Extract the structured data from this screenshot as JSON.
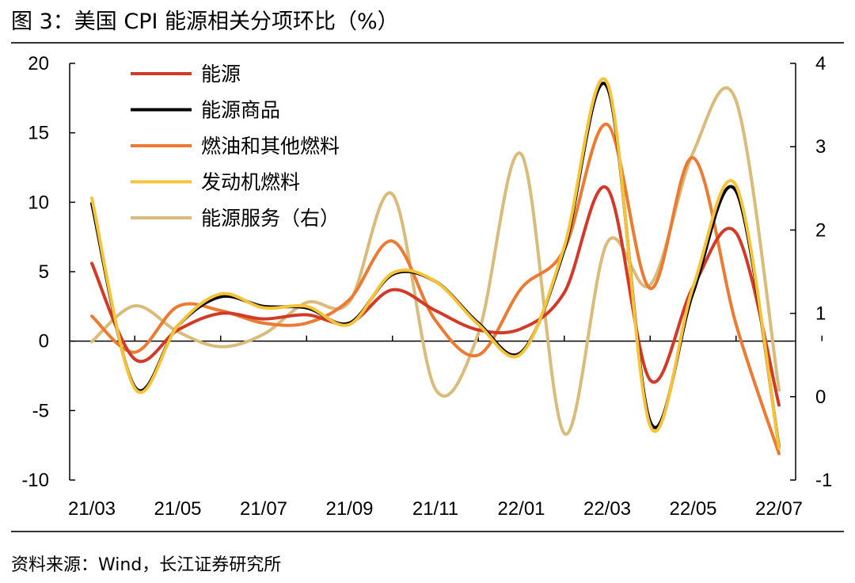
{
  "figure": {
    "title": "图 3：美国 CPI 能源相关分项环比（%）",
    "source": "资料来源：Wind，长江证券研究所"
  },
  "colors": {
    "能源": "#d13a27",
    "能源商品": "#000000",
    "燃油和其他燃料": "#eb7a32",
    "发动机燃料": "#f6c236",
    "能源服务": "#d9bb7a"
  },
  "chart_data": {
    "type": "line",
    "categories": [
      "21/03",
      "21/04",
      "21/05",
      "21/06",
      "21/07",
      "21/08",
      "21/09",
      "21/10",
      "21/11",
      "21/12",
      "22/01",
      "22/02",
      "22/03",
      "22/04",
      "22/05",
      "22/06",
      "22/07"
    ],
    "x_tick_labels": [
      "21/03",
      "21/05",
      "21/07",
      "21/09",
      "21/11",
      "22/01",
      "22/03",
      "22/05",
      "22/07"
    ],
    "y_left": {
      "ticks": [
        "20",
        "15",
        "10",
        "5",
        "0",
        "-5",
        "-10"
      ],
      "ylim": [
        -10,
        20
      ]
    },
    "y_right": {
      "ticks": [
        "4",
        "3",
        "2",
        "1",
        "0",
        "-1"
      ],
      "ylim": [
        -1,
        4
      ]
    },
    "legend_position": "top-left",
    "series": [
      {
        "name": "能源",
        "axis": "left",
        "values": [
          5.6,
          -1.3,
          0.8,
          2.0,
          1.6,
          1.9,
          1.3,
          3.7,
          2.2,
          0.8,
          0.9,
          3.5,
          11.0,
          -2.8,
          3.9,
          7.8,
          -4.6
        ]
      },
      {
        "name": "能源商品",
        "axis": "left",
        "values": [
          9.9,
          -3.3,
          1.1,
          3.2,
          2.5,
          2.4,
          1.3,
          4.8,
          4.3,
          1.3,
          -0.8,
          6.6,
          18.3,
          -5.8,
          3.5,
          10.8,
          -7.6
        ]
      },
      {
        "name": "燃油和其他燃料",
        "axis": "left",
        "values": [
          1.8,
          -0.8,
          2.5,
          2.2,
          1.3,
          1.3,
          3.0,
          7.2,
          1.5,
          -1.0,
          3.8,
          6.6,
          15.6,
          3.8,
          13.2,
          1.2,
          -8.1
        ]
      },
      {
        "name": "发动机燃料",
        "axis": "left",
        "values": [
          10.3,
          -3.4,
          1.1,
          3.4,
          2.4,
          2.5,
          1.2,
          4.9,
          4.3,
          1.2,
          -0.9,
          6.8,
          18.6,
          -6.1,
          3.9,
          11.2,
          -7.7
        ]
      },
      {
        "name": "能源服务（右）",
        "axis": "right",
        "values": [
          0.66,
          1.09,
          0.78,
          0.6,
          0.75,
          1.13,
          1.14,
          2.43,
          0.09,
          0.76,
          2.91,
          -0.44,
          1.85,
          1.34,
          2.93,
          3.55,
          0.08
        ]
      }
    ]
  }
}
